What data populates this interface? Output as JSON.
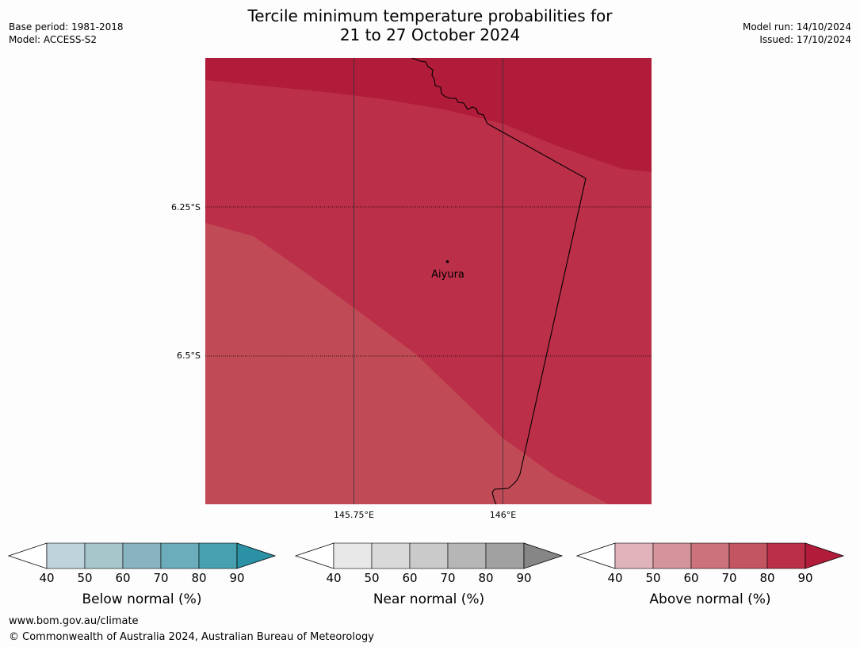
{
  "title": {
    "line1": "Tercile minimum temperature probabilities for",
    "line2": "21 to 27 October 2024"
  },
  "meta_left": {
    "base_period": "Base period: 1981-2018",
    "model": "Model: ACCESS-S2"
  },
  "meta_right": {
    "model_run": "Model run: 14/10/2024",
    "issued": "Issued: 17/10/2024"
  },
  "map": {
    "place_label": "Aiyura",
    "lat_labels": [
      "6.25°S",
      "6.5°S"
    ],
    "lon_labels": [
      "145.75°E",
      "146°E"
    ],
    "region_colors": {
      "above_90": "#b01c3a",
      "above_80": "#bb2f49",
      "above_70": "#c04b56"
    }
  },
  "legends": [
    {
      "name": "below-normal",
      "title": "Below normal (%)",
      "ticks": [
        "40",
        "50",
        "60",
        "70",
        "80",
        "90"
      ],
      "colors": [
        "#bed3da",
        "#a6c6cc",
        "#88b4c1",
        "#6badbb",
        "#46a0b0"
      ],
      "low_color": "#ffffff",
      "high_color": "#2a92a4"
    },
    {
      "name": "near-normal",
      "title": "Near normal (%)",
      "ticks": [
        "40",
        "50",
        "60",
        "70",
        "80",
        "90"
      ],
      "colors": [
        "#e8e8e8",
        "#d9d9d9",
        "#cacaca",
        "#b6b6b6",
        "#a0a0a0"
      ],
      "low_color": "#ffffff",
      "high_color": "#868686"
    },
    {
      "name": "above-normal",
      "title": "Above normal (%)",
      "ticks": [
        "40",
        "50",
        "60",
        "70",
        "80",
        "90"
      ],
      "colors": [
        "#e1b4bb",
        "#d5939b",
        "#cb727c",
        "#c35461",
        "#bb2f49"
      ],
      "low_color": "#ffffff",
      "high_color": "#b01c3a"
    }
  ],
  "footer": {
    "url": "www.bom.gov.au/climate",
    "copyright": "© Commonwealth of Australia 2024, Australian Bureau of Meteorology"
  }
}
